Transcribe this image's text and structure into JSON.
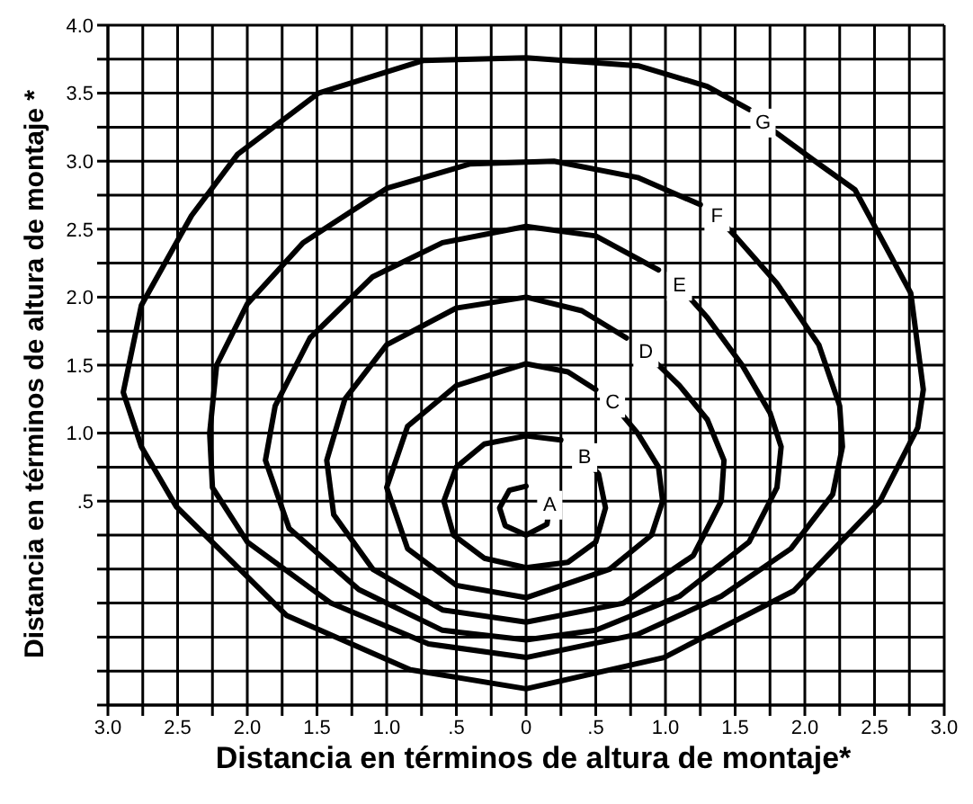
{
  "chart_data": {
    "type": "line",
    "xlabel": "Distancia en términos de altura de montaje*",
    "ylabel": "Distancia en términos de altura de montaje *",
    "xlim": [
      -3,
      3
    ],
    "ylim": [
      -1,
      4
    ],
    "grid": true,
    "marker": "none",
    "line_style": "solid",
    "xticks": [
      {
        "value": -3,
        "label": "3.0"
      },
      {
        "value": -2.75,
        "label": null
      },
      {
        "value": -2.5,
        "label": "2.5"
      },
      {
        "value": -2.25,
        "label": null
      },
      {
        "value": -2,
        "label": "2.0"
      },
      {
        "value": -1.75,
        "label": null
      },
      {
        "value": -1.5,
        "label": "1.5"
      },
      {
        "value": -1.25,
        "label": null
      },
      {
        "value": -1,
        "label": "1.0"
      },
      {
        "value": -0.75,
        "label": null
      },
      {
        "value": -0.5,
        "label": ".5"
      },
      {
        "value": -0.25,
        "label": null
      },
      0,
      {
        "value": 0.25,
        "label": null
      },
      {
        "value": 0.5,
        "label": ".5"
      },
      {
        "value": 0.75,
        "label": null
      },
      {
        "value": 1,
        "label": "1.0"
      },
      {
        "value": 1.25,
        "label": null
      },
      {
        "value": 1.5,
        "label": "1.5"
      },
      {
        "value": 1.75,
        "label": null
      },
      {
        "value": 2,
        "label": "2.0"
      },
      {
        "value": 2.25,
        "label": null
      },
      {
        "value": 2.5,
        "label": "2.5"
      },
      {
        "value": 2.75,
        "label": null
      },
      {
        "value": 3,
        "label": "3.0"
      }
    ],
    "yticks": [
      {
        "value": -1,
        "label": null
      },
      {
        "value": -0.75,
        "label": null
      },
      {
        "value": -0.5,
        "label": null
      },
      {
        "value": -0.25,
        "label": null
      },
      {
        "value": 0,
        "label": null
      },
      {
        "value": 0.25,
        "label": null
      },
      {
        "value": 0.5,
        "label": ".5"
      },
      {
        "value": 0.75,
        "label": null
      },
      {
        "value": 1,
        "label": "1.0"
      },
      {
        "value": 1.25,
        "label": null
      },
      {
        "value": 1.5,
        "label": "1.5"
      },
      {
        "value": 1.75,
        "label": null
      },
      {
        "value": 2,
        "label": "2.0"
      },
      {
        "value": 2.25,
        "label": null
      },
      {
        "value": 2.5,
        "label": "2.5"
      },
      {
        "value": 2.75,
        "label": null
      },
      {
        "value": 3,
        "label": "3.0"
      },
      {
        "value": 3.25,
        "label": null
      },
      {
        "value": 3.5,
        "label": "3.5"
      },
      {
        "value": 3.75,
        "label": null
      },
      {
        "value": 4,
        "label": "4.0"
      }
    ],
    "series": [
      {
        "name": "A",
        "color": "#000000",
        "x": [
          0.17,
          0.15,
          0,
          -0.15,
          -0.19,
          -0.12,
          0
        ],
        "values": [
          0.47,
          0.33,
          0.25,
          0.32,
          0.45,
          0.58,
          0.61
        ]
      },
      {
        "name": "B",
        "color": "#000000",
        "x": [
          0.42,
          0.52,
          0.57,
          0.5,
          0.3,
          0,
          -0.3,
          -0.52,
          -0.59,
          -0.5,
          -0.3,
          0,
          0.25
        ],
        "values": [
          0.82,
          0.7,
          0.45,
          0.2,
          0.05,
          0.01,
          0.08,
          0.25,
          0.5,
          0.75,
          0.92,
          0.98,
          0.95
        ]
      },
      {
        "name": "C",
        "color": "#000000",
        "x": [
          0.62,
          0.8,
          0.95,
          0.98,
          0.9,
          0.6,
          0,
          -0.5,
          -0.85,
          -1.0,
          -0.85,
          -0.5,
          0,
          0.3,
          0.5
        ],
        "values": [
          1.22,
          1.0,
          0.75,
          0.5,
          0.25,
          0.0,
          -0.21,
          -0.12,
          0.15,
          0.6,
          1.05,
          1.35,
          1.51,
          1.45,
          1.32
        ]
      },
      {
        "name": "D",
        "color": "#000000",
        "x": [
          0.86,
          1.1,
          1.3,
          1.42,
          1.4,
          1.2,
          0.7,
          0,
          -0.6,
          -1.1,
          -1.38,
          -1.43,
          -1.3,
          -1.0,
          -0.5,
          0,
          0.4,
          0.72
        ],
        "values": [
          1.59,
          1.35,
          1.1,
          0.8,
          0.5,
          0.1,
          -0.25,
          -0.39,
          -0.3,
          0.0,
          0.4,
          0.8,
          1.25,
          1.65,
          1.92,
          2.0,
          1.9,
          1.7
        ]
      },
      {
        "name": "E",
        "color": "#000000",
        "x": [
          1.1,
          1.3,
          1.55,
          1.75,
          1.83,
          1.8,
          1.6,
          1.1,
          0.5,
          0,
          -0.6,
          -1.2,
          -1.7,
          -1.87,
          -1.8,
          -1.55,
          -1.1,
          -0.6,
          0,
          0.5,
          0.95
        ],
        "values": [
          2.08,
          1.85,
          1.5,
          1.15,
          0.9,
          0.6,
          0.2,
          -0.2,
          -0.45,
          -0.52,
          -0.45,
          -0.15,
          0.3,
          0.8,
          1.2,
          1.7,
          2.15,
          2.4,
          2.52,
          2.45,
          2.2
        ]
      },
      {
        "name": "F",
        "color": "#000000",
        "x": [
          1.37,
          1.5,
          1.8,
          2.1,
          2.25,
          2.27,
          2.2,
          1.9,
          1.4,
          0.8,
          0,
          -0.7,
          -1.4,
          -2.0,
          -2.25,
          -2.27,
          -2.22,
          -2.0,
          -1.6,
          -1.0,
          -0.4,
          0.2,
          0.8,
          1.25
        ],
        "values": [
          2.59,
          2.45,
          2.1,
          1.65,
          1.2,
          0.9,
          0.55,
          0.15,
          -0.2,
          -0.48,
          -0.65,
          -0.55,
          -0.25,
          0.2,
          0.6,
          1.0,
          1.5,
          1.95,
          2.4,
          2.8,
          2.98,
          3.0,
          2.88,
          2.68
        ]
      },
      {
        "name": "G",
        "color": "#000000",
        "x": [
          1.7,
          2.1,
          2.36,
          2.76,
          2.85,
          2.81,
          2.54,
          1.92,
          0.99,
          0,
          -0.83,
          -1.72,
          -2.51,
          -2.76,
          -2.89,
          -2.76,
          -2.4,
          -2.07,
          -1.49,
          -0.74,
          0,
          0.81,
          1.3,
          1.6
        ],
        "values": [
          3.28,
          2.98,
          2.79,
          2.03,
          1.32,
          1.04,
          0.5,
          -0.16,
          -0.65,
          -0.88,
          -0.74,
          -0.34,
          0.46,
          0.9,
          1.3,
          1.94,
          2.6,
          3.05,
          3.5,
          3.74,
          3.76,
          3.7,
          3.55,
          3.38
        ]
      }
    ]
  }
}
